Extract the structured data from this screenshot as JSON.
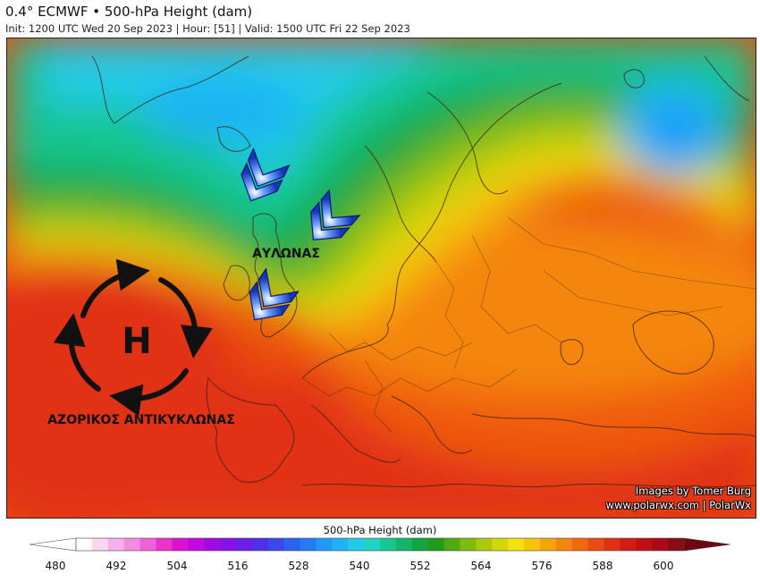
{
  "header": {
    "title": "0.4° ECMWF • 500-hPa Height (dam)",
    "subtitle": "Init: 1200 UTC Wed 20 Sep 2023 | Hour: [51] | Valid: 1500 UTC Fri 22 Sep 2023"
  },
  "annotations": {
    "high_letter": "H",
    "high_label": "ΑΖΟΡΙΚΟΣ ΑΝΤΙΚΥΚΛΩΝΑΣ",
    "trough_label": "ΑΥΛΩΝΑΣ"
  },
  "credits": {
    "line1": "Images by Tomer Burg",
    "line2": "www.polarwx.com | PolarWx"
  },
  "colorbar": {
    "label": "500-hPa Height (dam)",
    "min": 480,
    "max": 600,
    "ticks": [
      "480",
      "492",
      "504",
      "516",
      "528",
      "540",
      "552",
      "564",
      "576",
      "588",
      "600"
    ],
    "colors": [
      "#ffffff",
      "#fbd7f3",
      "#f7b1ea",
      "#f38be0",
      "#ef61d6",
      "#ea33cb",
      "#de10cf",
      "#c10adf",
      "#a20ae5",
      "#8412e8",
      "#6a1ee8",
      "#4f30e8",
      "#3a48ec",
      "#2c62f2",
      "#247df5",
      "#1f98f7",
      "#1fb2f5",
      "#20cbe8",
      "#1fd3c2",
      "#18c690",
      "#12b665",
      "#10a640",
      "#1f9c1a",
      "#4faa12",
      "#7fbb0c",
      "#abca0a",
      "#d4d80a",
      "#f4e10a",
      "#f7c40b",
      "#f6a40c",
      "#f4860d",
      "#f0680e",
      "#ea4b10",
      "#e13012",
      "#d31c14",
      "#c01016",
      "#a80b18",
      "#8a0a16"
    ]
  }
}
